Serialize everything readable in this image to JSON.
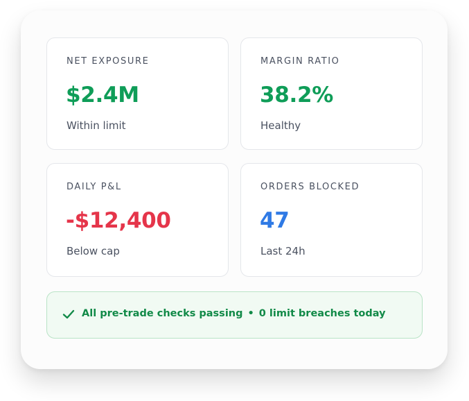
{
  "cards": [
    {
      "label": "NET EXPOSURE",
      "value": "$2.4M",
      "sub": "Within limit",
      "value_color": "#0f9d58"
    },
    {
      "label": "MARGIN RATIO",
      "value": "38.2%",
      "sub": "Healthy",
      "value_color": "#0f9d58"
    },
    {
      "label": "DAILY P&L",
      "value": "-$12,400",
      "sub": "Below cap",
      "value_color": "#e5354a"
    },
    {
      "label": "ORDERS BLOCKED",
      "value": "47",
      "sub": "Last 24h",
      "value_color": "#2f7ae5"
    }
  ],
  "banner": {
    "icon": "check-icon",
    "primary": "All pre-trade checks passing",
    "separator": "•",
    "secondary": "0 limit breaches today",
    "color": "#128a48"
  }
}
